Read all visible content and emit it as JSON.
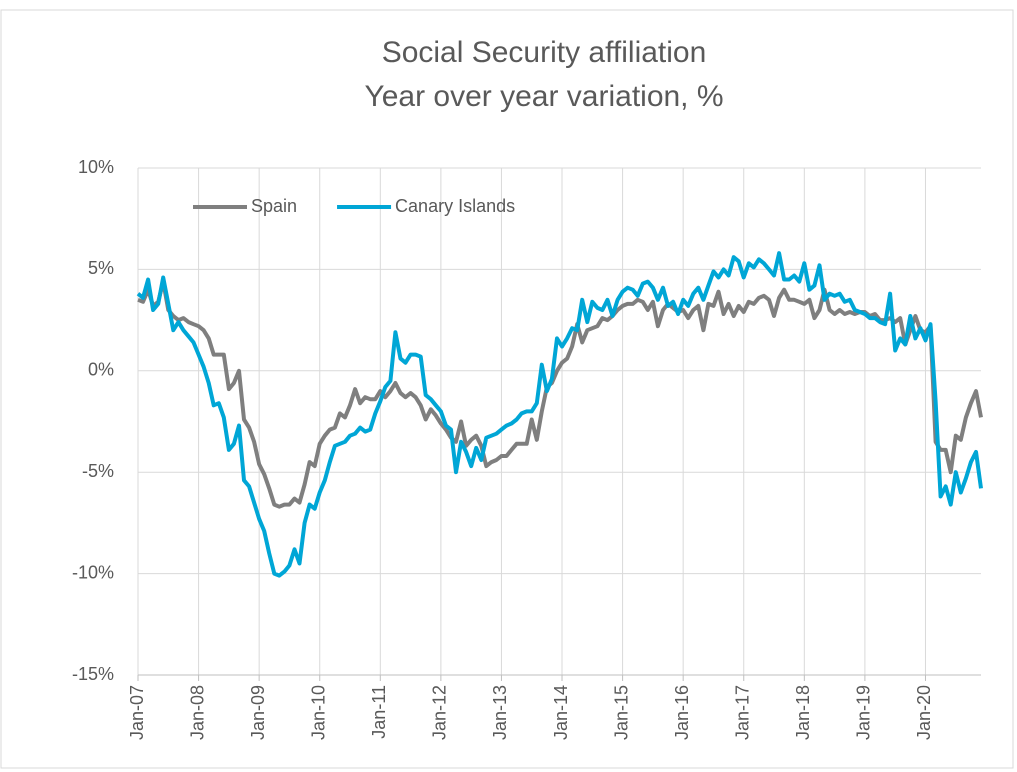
{
  "chart_data": {
    "type": "line",
    "title": "Social Security affiliation",
    "subtitle": "Year over year variation, %",
    "categories": [
      "Jan-07",
      null,
      null,
      null,
      null,
      null,
      null,
      null,
      null,
      null,
      null,
      null,
      "Jan-08",
      null,
      null,
      null,
      null,
      null,
      null,
      null,
      null,
      null,
      null,
      null,
      "Jan-09",
      null,
      null,
      null,
      null,
      null,
      null,
      null,
      null,
      null,
      null,
      null,
      "Jan-10",
      null,
      null,
      null,
      null,
      null,
      null,
      null,
      null,
      null,
      null,
      null,
      "Jan-11",
      null,
      null,
      null,
      null,
      null,
      null,
      null,
      null,
      null,
      null,
      null,
      "Jan-12",
      null,
      null,
      null,
      null,
      null,
      null,
      null,
      null,
      null,
      null,
      null,
      "Jan-13",
      null,
      null,
      null,
      null,
      null,
      null,
      null,
      null,
      null,
      null,
      null,
      "Jan-14",
      null,
      null,
      null,
      null,
      null,
      null,
      null,
      null,
      null,
      null,
      null,
      "Jan-15",
      null,
      null,
      null,
      null,
      null,
      null,
      null,
      null,
      null,
      null,
      null,
      "Jan-16",
      null,
      null,
      null,
      null,
      null,
      null,
      null,
      null,
      null,
      null,
      null,
      "Jan-17",
      null,
      null,
      null,
      null,
      null,
      null,
      null,
      null,
      null,
      null,
      null,
      "Jan-18",
      null,
      null,
      null,
      null,
      null,
      null,
      null,
      null,
      null,
      null,
      null,
      "Jan-19",
      null,
      null,
      null,
      null,
      null,
      null,
      null,
      null,
      null,
      null,
      null,
      "Jan-20",
      null,
      null,
      null,
      null,
      null,
      null,
      null,
      null,
      null,
      null,
      null
    ],
    "series": [
      {
        "name": "Spain",
        "color": "#7f7f7f",
        "values": [
          3.5,
          3.4,
          4.0,
          3.2,
          3.4,
          4.4,
          3.0,
          2.7,
          2.5,
          2.6,
          2.4,
          2.3,
          2.2,
          2.0,
          1.6,
          0.8,
          0.8,
          0.8,
          -0.9,
          -0.6,
          0.0,
          -2.4,
          -2.8,
          -3.5,
          -4.6,
          -5.1,
          -5.8,
          -6.6,
          -6.7,
          -6.6,
          -6.6,
          -6.3,
          -6.5,
          -5.6,
          -4.5,
          -4.7,
          -3.6,
          -3.2,
          -2.9,
          -2.8,
          -2.1,
          -2.3,
          -1.7,
          -0.9,
          -1.6,
          -1.3,
          -1.4,
          -1.4,
          -1.0,
          -1.3,
          -1.0,
          -0.6,
          -1.1,
          -1.3,
          -1.1,
          -1.3,
          -1.7,
          -2.4,
          -1.9,
          -2.2,
          -2.6,
          -2.9,
          -3.3,
          -3.5,
          -2.5,
          -3.7,
          -3.4,
          -3.2,
          -3.7,
          -4.7,
          -4.5,
          -4.4,
          -4.2,
          -4.2,
          -3.9,
          -3.6,
          -3.6,
          -3.6,
          -2.4,
          -3.4,
          -2.0,
          -0.8,
          -0.6,
          0.0,
          0.4,
          0.6,
          1.2,
          2.3,
          1.4,
          2.0,
          2.1,
          2.2,
          2.6,
          2.5,
          2.7,
          3.0,
          3.2,
          3.3,
          3.3,
          3.5,
          3.4,
          3.0,
          3.4,
          2.2,
          3.0,
          3.3,
          3.1,
          2.9,
          3.0,
          2.6,
          3.0,
          3.2,
          2.0,
          3.3,
          3.2,
          3.9,
          2.8,
          3.3,
          2.7,
          3.2,
          2.9,
          3.4,
          3.3,
          3.6,
          3.7,
          3.5,
          2.7,
          3.6,
          4.0,
          3.5,
          3.5,
          3.4,
          3.3,
          3.5,
          2.6,
          3.0,
          4.0,
          3.0,
          2.8,
          3.0,
          2.8,
          2.9,
          2.8,
          2.9,
          2.9,
          2.7,
          2.8,
          2.5,
          2.5,
          2.6,
          2.4,
          2.6,
          1.3,
          2.0,
          2.7,
          2.0,
          1.9,
          2.2,
          -3.5,
          -3.9,
          -3.9,
          -5.0,
          -3.2,
          -3.4,
          -2.3,
          -1.6,
          -1.0,
          -2.3
        ]
      },
      {
        "name": "Canary Islands",
        "color": "#00a6d6",
        "values": [
          3.8,
          3.6,
          4.5,
          3.0,
          3.3,
          4.6,
          3.3,
          2.0,
          2.4,
          2.0,
          1.7,
          1.4,
          0.8,
          0.2,
          -0.6,
          -1.7,
          -1.6,
          -2.3,
          -3.9,
          -3.6,
          -2.7,
          -5.4,
          -5.7,
          -6.5,
          -7.3,
          -7.9,
          -9.0,
          -10.0,
          -10.1,
          -9.9,
          -9.6,
          -8.8,
          -9.5,
          -7.5,
          -6.6,
          -6.8,
          -6.0,
          -5.4,
          -4.5,
          -3.7,
          -3.6,
          -3.5,
          -3.2,
          -3.1,
          -2.8,
          -3.0,
          -2.9,
          -2.1,
          -1.5,
          -0.8,
          -0.5,
          1.9,
          0.6,
          0.4,
          0.8,
          0.8,
          0.7,
          -1.2,
          -1.4,
          -1.7,
          -2.0,
          -2.7,
          -2.9,
          -5.0,
          -3.5,
          -4.0,
          -4.7,
          -3.8,
          -4.4,
          -3.3,
          -3.2,
          -3.1,
          -2.9,
          -2.7,
          -2.6,
          -2.4,
          -2.1,
          -2.0,
          -2.0,
          -1.6,
          0.3,
          -1.0,
          -0.4,
          1.6,
          1.2,
          1.6,
          2.1,
          2.0,
          3.5,
          2.4,
          3.4,
          3.1,
          3.0,
          3.5,
          2.7,
          3.5,
          3.9,
          4.1,
          4.0,
          3.7,
          4.3,
          4.4,
          4.1,
          3.5,
          4.1,
          3.2,
          3.4,
          2.8,
          3.5,
          3.2,
          3.8,
          4.1,
          3.5,
          4.2,
          4.9,
          4.6,
          5.0,
          4.7,
          5.6,
          5.4,
          4.6,
          5.3,
          5.1,
          5.5,
          5.3,
          5.0,
          4.7,
          5.8,
          4.5,
          4.5,
          4.7,
          4.4,
          5.3,
          4.0,
          4.2,
          5.2,
          3.5,
          3.8,
          3.7,
          3.8,
          3.4,
          3.5,
          3.0,
          2.9,
          2.8,
          2.6,
          2.6,
          2.4,
          2.3,
          3.8,
          1.0,
          1.6,
          1.3,
          2.7,
          1.6,
          2.1,
          1.5,
          2.3,
          -1.5,
          -6.2,
          -5.7,
          -6.6,
          -5.0,
          -6.0,
          -5.3,
          -4.5,
          -4.0,
          -5.8
        ]
      }
    ],
    "ylim": [
      -15,
      10
    ],
    "yticks": [
      {
        "value": -15,
        "label": "-15%"
      },
      {
        "value": -10,
        "label": "-10%"
      },
      {
        "value": -5,
        "label": "-5%"
      },
      {
        "value": 0,
        "label": "0%"
      },
      {
        "value": 5,
        "label": "5%"
      },
      {
        "value": 10,
        "label": "10%"
      }
    ],
    "grid": true,
    "legend": "top-left"
  }
}
